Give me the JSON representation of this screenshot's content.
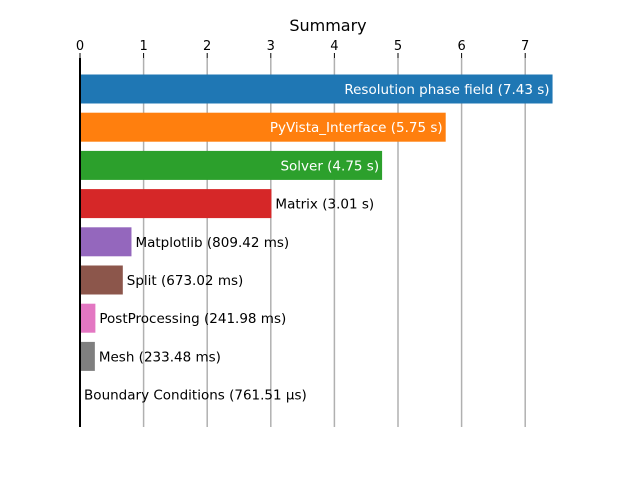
{
  "chart_data": {
    "type": "bar",
    "orientation": "horizontal",
    "title": "Summary",
    "xlabel": "",
    "ylabel": "",
    "xlim": [
      0,
      7.43
    ],
    "x_ticks": [
      0,
      1,
      2,
      3,
      4,
      5,
      6,
      7
    ],
    "grid": "vertical lines at x ticks",
    "x_axis_position": "top",
    "categories": [
      "Resolution phase field",
      "PyVista_Interface",
      "Solver",
      "Matrix",
      "Matplotlib",
      "Split",
      "PostProcessing",
      "Mesh",
      "Boundary Conditions"
    ],
    "values_seconds": [
      7.43,
      5.75,
      4.75,
      3.01,
      0.80942,
      0.67302,
      0.24198,
      0.23348,
      0.00076151
    ],
    "data_labels": [
      "Resolution phase field (7.43 s)",
      "PyVista_Interface (5.75 s)",
      "Solver (4.75 s)",
      "Matrix (3.01 s)",
      "Matplotlib (809.42 ms)",
      "Split (673.02 ms)",
      "PostProcessing (241.98 ms)",
      "Mesh (233.48 ms)",
      "Boundary Conditions (761.51 µs)"
    ],
    "label_inside": [
      true,
      true,
      true,
      false,
      false,
      false,
      false,
      false,
      false
    ],
    "colors": [
      "#1f77b4",
      "#ff7f0e",
      "#2ca02c",
      "#d62728",
      "#9467bd",
      "#8c564b",
      "#e377c2",
      "#7f7f7f",
      "#bcbd22"
    ]
  }
}
